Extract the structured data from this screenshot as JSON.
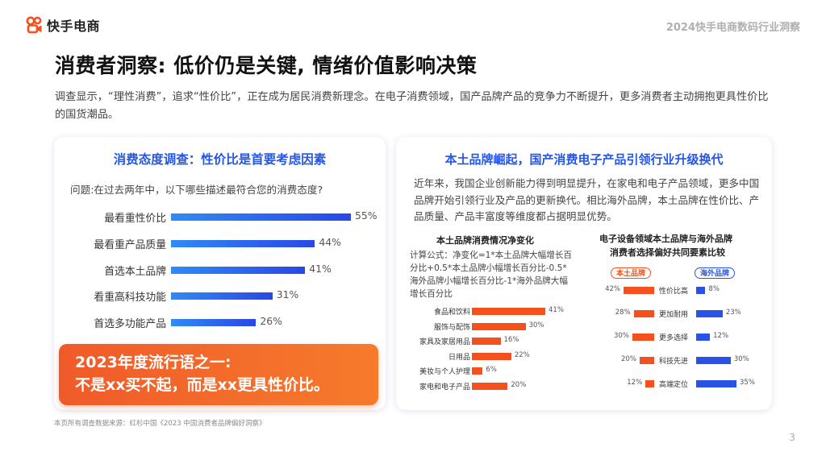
{
  "brand": {
    "name": "快手电商",
    "accent": "#f4511e"
  },
  "header": {
    "report_title": "2024快手电商数码行业洞察"
  },
  "page": {
    "title": "消费者洞察: 低价仍是关键, 情绪价值影响决策",
    "intro": "调查显示，“理性消费”，追求“性价比”，正在成为居民消费新理念。在电子消费领域，国产品牌产品的竞争力不断提升，更多消费者主动拥抱更具性价比的国货潮品。",
    "footnote": "本页所有调查数据来源：红杉中国《2023 中国消费者品牌偏好洞察》",
    "page_number": "3"
  },
  "left_card": {
    "title": "消费态度调查：性价比是首要考虑因素",
    "question": "问题:在过去两年中，以下哪些描述最符合您的消费态度?",
    "bars": [
      {
        "label": "最看重性价比",
        "value": 55,
        "value_label": "55%"
      },
      {
        "label": "最看重产品质量",
        "value": 44,
        "value_label": "44%"
      },
      {
        "label": "首选本土品牌",
        "value": 41,
        "value_label": "41%"
      },
      {
        "label": "看重高科技功能",
        "value": 31,
        "value_label": "31%"
      },
      {
        "label": "首选多功能产品",
        "value": 26,
        "value_label": "26%"
      }
    ],
    "slogan": {
      "line1": "2023年度流行语之一:",
      "line2": "不是xx买不起，而是xx更具性价比。"
    }
  },
  "right_card": {
    "title": "本土品牌崛起，国产消费电子产品引领行业升级换代",
    "description": "近年来，我国企业创新能力得到明显提升，在家电和电子产品领域，更多中国品牌开始引领行业及产品的更新换代。相比海外品牌，本土品牌在性价比、产品质量、产品丰富度等维度都占据明显优势。",
    "net_chart": {
      "title": "本土品牌消费情况净变化",
      "formula": "计算公式：净变化=1*本土品牌大幅增长百分比+0.5*本土品牌小幅增长百分比-0.5*海外品牌小幅增长百分比-1*海外品牌大幅增长百分比",
      "items": [
        {
          "label": "食品和饮料",
          "value": 41,
          "value_label": "41%"
        },
        {
          "label": "服饰与配饰",
          "value": 30,
          "value_label": "30%"
        },
        {
          "label": "家具及家居用品",
          "value": 16,
          "value_label": "16%"
        },
        {
          "label": "日用品",
          "value": 22,
          "value_label": "22%"
        },
        {
          "label": "美妆与个人护理",
          "value": 6,
          "value_label": "6%"
        },
        {
          "label": "家电和电子产品",
          "value": 20,
          "value_label": "20%"
        }
      ]
    },
    "compare_chart": {
      "title_line1": "电子设备领域本土品牌与海外品牌",
      "title_line2": "消费者选择偏好共同要素比较",
      "legend_local": "本土品牌",
      "legend_foreign": "海外品牌",
      "local_color": "#f4511e",
      "foreign_color": "#2a52e6",
      "items": [
        {
          "factor": "性价比高",
          "local": 42,
          "local_label": "42%",
          "foreign": 8,
          "foreign_label": "8%"
        },
        {
          "factor": "更加耐用",
          "local": 28,
          "local_label": "28%",
          "foreign": 23,
          "foreign_label": "23%"
        },
        {
          "factor": "更多选择",
          "local": 30,
          "local_label": "30%",
          "foreign": 12,
          "foreign_label": "12%"
        },
        {
          "factor": "科技先进",
          "local": 20,
          "local_label": "20%",
          "foreign": 30,
          "foreign_label": "30%"
        },
        {
          "factor": "高端定位",
          "local": 12,
          "local_label": "12%",
          "foreign": 35,
          "foreign_label": "35%"
        }
      ]
    }
  }
}
